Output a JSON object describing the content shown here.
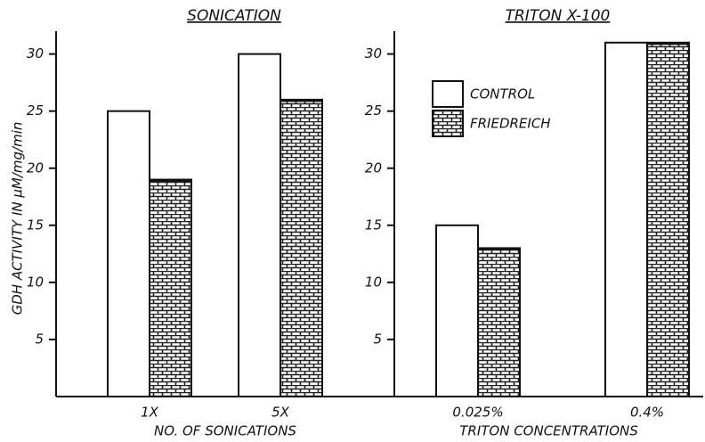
{
  "chart_data": [
    {
      "type": "bar",
      "title": "SONICATION",
      "xlabel": "NO. OF SONICATIONS",
      "ylabel": "GDH ACTIVITY IN μM/mg/min",
      "categories": [
        "1X",
        "5X"
      ],
      "series": [
        {
          "color": "#ffffff",
          "values": [
            25,
            30
          ]
        },
        {
          "color": "#222222",
          "pattern": "brick",
          "values": [
            19,
            26
          ]
        }
      ],
      "ylim": [
        0,
        32
      ],
      "yticks": [
        5,
        10,
        15,
        20,
        25,
        30
      ]
    },
    {
      "type": "bar",
      "title": "TRITON X-100",
      "xlabel": "TRITON CONCENTRATIONS",
      "categories": [
        "0.025%",
        "0.4%"
      ],
      "series": [
        {
          "name": "CONTROL",
          "color": "#ffffff",
          "values": [
            15,
            31
          ]
        },
        {
          "name": "FRIEDREICH",
          "color": "#222222",
          "pattern": "brick",
          "values": [
            13,
            31
          ]
        }
      ],
      "ylim": [
        0,
        32
      ],
      "yticks": [
        5,
        10,
        15,
        20,
        25,
        30
      ],
      "legend": "upper left"
    }
  ]
}
